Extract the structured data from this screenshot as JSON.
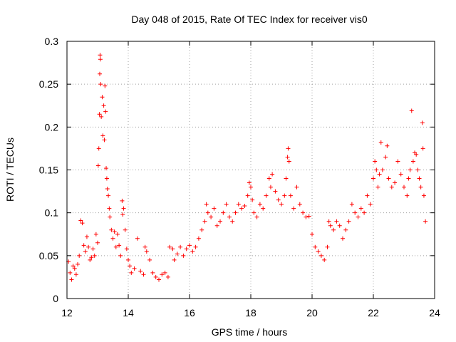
{
  "chart_data": {
    "type": "scatter",
    "title": "Day 048 of 2015, Rate Of TEC Index for receiver vis0",
    "xlabel": "GPS time / hours",
    "ylabel": "ROTI / TECUs",
    "xlim": [
      12,
      24
    ],
    "ylim": [
      0,
      0.3
    ],
    "xticks": [
      12,
      14,
      16,
      18,
      20,
      22,
      24
    ],
    "xtick_labels": [
      "12",
      "14",
      "16",
      "18",
      "20",
      "22",
      "24"
    ],
    "yticks": [
      0,
      0.05,
      0.1,
      0.15,
      0.2,
      0.25,
      0.3
    ],
    "ytick_labels": [
      "0",
      "0.05",
      "0.1",
      "0.15",
      "0.2",
      "0.25",
      "0.3"
    ],
    "grid": true,
    "marker": "+",
    "marker_color": "#ff0000",
    "series": [
      {
        "name": "ROTI",
        "points": [
          [
            12.05,
            0.043
          ],
          [
            12.1,
            0.03
          ],
          [
            12.15,
            0.022
          ],
          [
            12.2,
            0.038
          ],
          [
            12.25,
            0.035
          ],
          [
            12.3,
            0.028
          ],
          [
            12.35,
            0.04
          ],
          [
            12.4,
            0.05
          ],
          [
            12.45,
            0.091
          ],
          [
            12.5,
            0.088
          ],
          [
            12.55,
            0.062
          ],
          [
            12.6,
            0.055
          ],
          [
            12.65,
            0.072
          ],
          [
            12.7,
            0.06
          ],
          [
            12.75,
            0.045
          ],
          [
            12.8,
            0.048
          ],
          [
            12.85,
            0.058
          ],
          [
            12.9,
            0.05
          ],
          [
            12.95,
            0.075
          ],
          [
            13.0,
            0.065
          ],
          [
            13.02,
            0.155
          ],
          [
            13.04,
            0.175
          ],
          [
            13.06,
            0.215
          ],
          [
            13.07,
            0.262
          ],
          [
            13.08,
            0.284
          ],
          [
            13.09,
            0.279
          ],
          [
            13.1,
            0.25
          ],
          [
            13.12,
            0.212
          ],
          [
            13.15,
            0.235
          ],
          [
            13.17,
            0.19
          ],
          [
            13.2,
            0.225
          ],
          [
            13.22,
            0.185
          ],
          [
            13.24,
            0.248
          ],
          [
            13.26,
            0.218
          ],
          [
            13.28,
            0.152
          ],
          [
            13.3,
            0.14
          ],
          [
            13.32,
            0.128
          ],
          [
            13.35,
            0.12
          ],
          [
            13.38,
            0.105
          ],
          [
            13.4,
            0.095
          ],
          [
            13.45,
            0.08
          ],
          [
            13.5,
            0.07
          ],
          [
            13.55,
            0.078
          ],
          [
            13.6,
            0.06
          ],
          [
            13.65,
            0.075
          ],
          [
            13.7,
            0.062
          ],
          [
            13.75,
            0.05
          ],
          [
            13.8,
            0.114
          ],
          [
            13.82,
            0.098
          ],
          [
            13.85,
            0.105
          ],
          [
            13.9,
            0.08
          ],
          [
            13.95,
            0.058
          ],
          [
            14.0,
            0.045
          ],
          [
            14.05,
            0.038
          ],
          [
            14.1,
            0.03
          ],
          [
            14.2,
            0.035
          ],
          [
            14.3,
            0.07
          ],
          [
            14.4,
            0.032
          ],
          [
            14.5,
            0.028
          ],
          [
            14.55,
            0.06
          ],
          [
            14.6,
            0.055
          ],
          [
            14.7,
            0.045
          ],
          [
            14.8,
            0.03
          ],
          [
            14.9,
            0.025
          ],
          [
            15.0,
            0.022
          ],
          [
            15.1,
            0.028
          ],
          [
            15.2,
            0.03
          ],
          [
            15.3,
            0.025
          ],
          [
            15.35,
            0.06
          ],
          [
            15.45,
            0.058
          ],
          [
            15.5,
            0.045
          ],
          [
            15.6,
            0.052
          ],
          [
            15.7,
            0.06
          ],
          [
            15.8,
            0.05
          ],
          [
            15.9,
            0.058
          ],
          [
            16.0,
            0.062
          ],
          [
            16.1,
            0.055
          ],
          [
            16.2,
            0.06
          ],
          [
            16.3,
            0.07
          ],
          [
            16.4,
            0.08
          ],
          [
            16.5,
            0.09
          ],
          [
            16.55,
            0.11
          ],
          [
            16.6,
            0.1
          ],
          [
            16.7,
            0.095
          ],
          [
            16.8,
            0.105
          ],
          [
            16.9,
            0.085
          ],
          [
            17.0,
            0.09
          ],
          [
            17.1,
            0.1
          ],
          [
            17.2,
            0.11
          ],
          [
            17.3,
            0.095
          ],
          [
            17.4,
            0.09
          ],
          [
            17.5,
            0.1
          ],
          [
            17.6,
            0.11
          ],
          [
            17.7,
            0.105
          ],
          [
            17.8,
            0.108
          ],
          [
            17.9,
            0.12
          ],
          [
            17.95,
            0.135
          ],
          [
            18.0,
            0.13
          ],
          [
            18.05,
            0.115
          ],
          [
            18.1,
            0.1
          ],
          [
            18.2,
            0.095
          ],
          [
            18.3,
            0.11
          ],
          [
            18.4,
            0.105
          ],
          [
            18.5,
            0.12
          ],
          [
            18.6,
            0.14
          ],
          [
            18.65,
            0.13
          ],
          [
            18.7,
            0.145
          ],
          [
            18.8,
            0.125
          ],
          [
            18.9,
            0.115
          ],
          [
            19.0,
            0.11
          ],
          [
            19.1,
            0.12
          ],
          [
            19.15,
            0.14
          ],
          [
            19.2,
            0.165
          ],
          [
            19.22,
            0.175
          ],
          [
            19.25,
            0.16
          ],
          [
            19.3,
            0.12
          ],
          [
            19.4,
            0.105
          ],
          [
            19.5,
            0.13
          ],
          [
            19.6,
            0.11
          ],
          [
            19.7,
            0.1
          ],
          [
            19.8,
            0.095
          ],
          [
            19.9,
            0.096
          ],
          [
            20.0,
            0.075
          ],
          [
            20.1,
            0.06
          ],
          [
            20.2,
            0.055
          ],
          [
            20.3,
            0.05
          ],
          [
            20.4,
            0.045
          ],
          [
            20.5,
            0.06
          ],
          [
            20.55,
            0.09
          ],
          [
            20.6,
            0.085
          ],
          [
            20.7,
            0.08
          ],
          [
            20.8,
            0.09
          ],
          [
            20.9,
            0.085
          ],
          [
            21.0,
            0.07
          ],
          [
            21.1,
            0.08
          ],
          [
            21.2,
            0.09
          ],
          [
            21.3,
            0.11
          ],
          [
            21.4,
            0.1
          ],
          [
            21.5,
            0.095
          ],
          [
            21.6,
            0.105
          ],
          [
            21.7,
            0.1
          ],
          [
            21.8,
            0.12
          ],
          [
            21.9,
            0.11
          ],
          [
            22.0,
            0.14
          ],
          [
            22.05,
            0.16
          ],
          [
            22.1,
            0.15
          ],
          [
            22.15,
            0.13
          ],
          [
            22.2,
            0.145
          ],
          [
            22.25,
            0.182
          ],
          [
            22.3,
            0.15
          ],
          [
            22.4,
            0.165
          ],
          [
            22.45,
            0.178
          ],
          [
            22.5,
            0.14
          ],
          [
            22.6,
            0.13
          ],
          [
            22.7,
            0.135
          ],
          [
            22.8,
            0.16
          ],
          [
            22.9,
            0.145
          ],
          [
            23.0,
            0.13
          ],
          [
            23.1,
            0.12
          ],
          [
            23.15,
            0.14
          ],
          [
            23.2,
            0.15
          ],
          [
            23.25,
            0.219
          ],
          [
            23.3,
            0.16
          ],
          [
            23.35,
            0.17
          ],
          [
            23.4,
            0.168
          ],
          [
            23.45,
            0.15
          ],
          [
            23.5,
            0.14
          ],
          [
            23.55,
            0.13
          ],
          [
            23.6,
            0.205
          ],
          [
            23.62,
            0.175
          ],
          [
            23.65,
            0.12
          ],
          [
            23.7,
            0.09
          ]
        ]
      }
    ]
  }
}
